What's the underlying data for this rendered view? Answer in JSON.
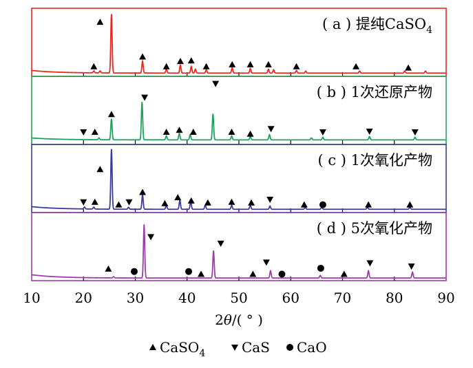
{
  "chart_data": {
    "type": "line",
    "xlabel_parts": [
      "2",
      "θ",
      "/( ° )"
    ],
    "xlim": [
      10,
      90
    ],
    "ylim": [
      0,
      1
    ],
    "x_ticks": [
      10,
      20,
      30,
      40,
      50,
      60,
      70,
      80,
      90
    ],
    "grid": false,
    "legend_position": "bottom",
    "legend": [
      {
        "symbol": "triangle-up",
        "label": "CaSO",
        "sub": "4"
      },
      {
        "symbol": "triangle-down",
        "label": "CaS",
        "sub": ""
      },
      {
        "symbol": "circle",
        "label": "CaO",
        "sub": ""
      }
    ],
    "panels": [
      {
        "label_prefix": "( a )  提纯CaSO",
        "label_sub": "4",
        "color": "#e8281e",
        "baseline": 0.05,
        "hump": 0.04,
        "peaks": [
          [
            22.0,
            0.03
          ],
          [
            23.2,
            0.03
          ],
          [
            25.4,
            0.9
          ],
          [
            31.4,
            0.18
          ],
          [
            36.0,
            0.06
          ],
          [
            38.7,
            0.12
          ],
          [
            40.8,
            0.1
          ],
          [
            41.6,
            0.06
          ],
          [
            43.7,
            0.05
          ],
          [
            48.7,
            0.08
          ],
          [
            52.2,
            0.07
          ],
          [
            55.7,
            0.06
          ],
          [
            56.7,
            0.05
          ],
          [
            61.1,
            0.04
          ],
          [
            62.9,
            0.03
          ],
          [
            73.3,
            0.03
          ],
          [
            82.0,
            0.03
          ],
          [
            86.0,
            0.03
          ]
        ],
        "markers": [
          {
            "type": "up",
            "x": 22.0,
            "y": 0.15
          },
          {
            "type": "up",
            "x": 23.2,
            "y": 0.83
          },
          {
            "type": "up",
            "x": 31.4,
            "y": 0.3
          },
          {
            "type": "up",
            "x": 36.0,
            "y": 0.15
          },
          {
            "type": "up",
            "x": 38.7,
            "y": 0.23
          },
          {
            "type": "up",
            "x": 40.8,
            "y": 0.24
          },
          {
            "type": "up",
            "x": 43.7,
            "y": 0.15
          },
          {
            "type": "up",
            "x": 48.7,
            "y": 0.18
          },
          {
            "type": "up",
            "x": 52.2,
            "y": 0.18
          },
          {
            "type": "up",
            "x": 55.7,
            "y": 0.18
          },
          {
            "type": "up",
            "x": 61.1,
            "y": 0.15
          },
          {
            "type": "up",
            "x": 72.6,
            "y": 0.15
          },
          {
            "type": "up",
            "x": 82.7,
            "y": 0.13
          }
        ]
      },
      {
        "label_prefix": "( b )  1次还原产物",
        "label_sub": "",
        "color": "#1fa35a",
        "baseline": 0.07,
        "hump": 0.03,
        "peaks": [
          [
            23.0,
            0.03
          ],
          [
            25.4,
            0.32
          ],
          [
            31.3,
            0.58
          ],
          [
            36.0,
            0.06
          ],
          [
            38.5,
            0.1
          ],
          [
            40.6,
            0.08
          ],
          [
            45.0,
            0.4
          ],
          [
            48.6,
            0.06
          ],
          [
            52.2,
            0.05
          ],
          [
            55.9,
            0.08
          ],
          [
            64.0,
            0.03
          ],
          [
            66.2,
            0.04
          ],
          [
            75.2,
            0.05
          ],
          [
            84.0,
            0.04
          ]
        ],
        "markers": [
          {
            "type": "down",
            "x": 20.0,
            "y": 0.19
          },
          {
            "type": "up",
            "x": 22.2,
            "y": 0.19
          },
          {
            "type": "up",
            "x": 25.4,
            "y": 0.46
          },
          {
            "type": "down",
            "x": 31.8,
            "y": 0.72
          },
          {
            "type": "up",
            "x": 36.0,
            "y": 0.19
          },
          {
            "type": "up",
            "x": 38.5,
            "y": 0.22
          },
          {
            "type": "up",
            "x": 41.2,
            "y": 0.19
          },
          {
            "type": "down",
            "x": 45.5,
            "y": 0.93
          },
          {
            "type": "up",
            "x": 48.6,
            "y": 0.19
          },
          {
            "type": "up",
            "x": 52.2,
            "y": 0.16
          },
          {
            "type": "down",
            "x": 56.2,
            "y": 0.24
          },
          {
            "type": "down",
            "x": 66.2,
            "y": 0.19
          },
          {
            "type": "down",
            "x": 75.2,
            "y": 0.2
          },
          {
            "type": "down",
            "x": 84.0,
            "y": 0.19
          }
        ]
      },
      {
        "label_prefix": "( c )  1次氧化产物",
        "label_sub": "",
        "color": "#3a3a9a",
        "baseline": 0.05,
        "hump": 0.04,
        "peaks": [
          [
            20.2,
            0.03
          ],
          [
            22.0,
            0.03
          ],
          [
            25.4,
            0.92
          ],
          [
            28.7,
            0.03
          ],
          [
            31.4,
            0.22
          ],
          [
            36.0,
            0.06
          ],
          [
            38.6,
            0.14
          ],
          [
            40.7,
            0.12
          ],
          [
            43.5,
            0.06
          ],
          [
            48.6,
            0.06
          ],
          [
            52.2,
            0.06
          ],
          [
            56.0,
            0.05
          ],
          [
            62.8,
            0.03
          ],
          [
            66.0,
            0.03
          ],
          [
            74.8,
            0.03
          ],
          [
            83.0,
            0.03
          ]
        ],
        "markers": [
          {
            "type": "down",
            "x": 20.0,
            "y": 0.16
          },
          {
            "type": "up",
            "x": 22.2,
            "y": 0.16
          },
          {
            "type": "up",
            "x": 23.2,
            "y": 0.66
          },
          {
            "type": "up",
            "x": 26.8,
            "y": 0.12
          },
          {
            "type": "down",
            "x": 28.8,
            "y": 0.16
          },
          {
            "type": "up",
            "x": 31.4,
            "y": 0.31
          },
          {
            "type": "up",
            "x": 35.7,
            "y": 0.14
          },
          {
            "type": "up",
            "x": 38.2,
            "y": 0.23
          },
          {
            "type": "up",
            "x": 40.8,
            "y": 0.18
          },
          {
            "type": "up",
            "x": 44.0,
            "y": 0.15
          },
          {
            "type": "up",
            "x": 48.6,
            "y": 0.16
          },
          {
            "type": "up",
            "x": 52.4,
            "y": 0.15
          },
          {
            "type": "down",
            "x": 56.0,
            "y": 0.2
          },
          {
            "type": "up",
            "x": 62.6,
            "y": 0.12
          },
          {
            "type": "circle",
            "x": 66.2,
            "y": 0.12
          },
          {
            "type": "up",
            "x": 75.0,
            "y": 0.12
          },
          {
            "type": "up",
            "x": 83.0,
            "y": 0.12
          }
        ]
      },
      {
        "label_prefix": "( d )  5次氧化产物",
        "label_sub": "",
        "color": "#9b3fa8",
        "baseline": 0.04,
        "hump": 0.05,
        "peaks": [
          [
            25.8,
            0.02
          ],
          [
            31.7,
            0.82
          ],
          [
            45.1,
            0.42
          ],
          [
            56.1,
            0.11
          ],
          [
            65.7,
            0.04
          ],
          [
            75.0,
            0.11
          ],
          [
            83.5,
            0.09
          ]
        ],
        "markers": [
          {
            "type": "up",
            "x": 24.8,
            "y": 0.18
          },
          {
            "type": "circle",
            "x": 29.8,
            "y": 0.14
          },
          {
            "type": "down",
            "x": 33.0,
            "y": 0.67
          },
          {
            "type": "circle",
            "x": 40.3,
            "y": 0.14
          },
          {
            "type": "up",
            "x": 42.7,
            "y": 0.1
          },
          {
            "type": "down",
            "x": 46.5,
            "y": 0.57
          },
          {
            "type": "up",
            "x": 52.7,
            "y": 0.1
          },
          {
            "type": "down",
            "x": 55.3,
            "y": 0.28
          },
          {
            "type": "circle",
            "x": 58.3,
            "y": 0.1
          },
          {
            "type": "circle",
            "x": 65.8,
            "y": 0.19
          },
          {
            "type": "up",
            "x": 70.3,
            "y": 0.1
          },
          {
            "type": "down",
            "x": 75.3,
            "y": 0.27
          },
          {
            "type": "down",
            "x": 83.3,
            "y": 0.22
          }
        ]
      }
    ]
  }
}
